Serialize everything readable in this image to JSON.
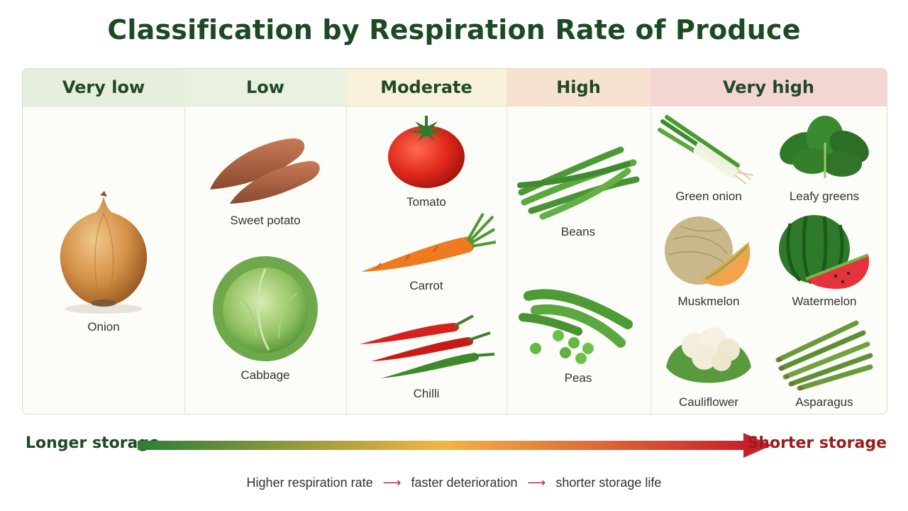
{
  "title": "Classification by Respiration Rate of Produce",
  "columns": [
    {
      "label": "Very low",
      "bg": "#e6efdc"
    },
    {
      "label": "Low",
      "bg": "#eaf1e1"
    },
    {
      "label": "Moderate",
      "bg": "#f7f2d9"
    },
    {
      "label": "High",
      "bg": "#f7e1cf"
    },
    {
      "label": "Very high",
      "bg": "#f3d5d3"
    }
  ],
  "produce": {
    "onion": "Onion",
    "sweet_potato": "Sweet potato",
    "cabbage": "Cabbage",
    "tomato": "Tomato",
    "carrot": "Carrot",
    "chilli": "Chilli",
    "beans": "Beans",
    "peas": "Peas",
    "green_onion": "Green onion",
    "leafy_greens": "Leafy greens",
    "muskmelon": "Muskmelon",
    "watermelon": "Watermelon",
    "cauliflower": "Cauliflower",
    "asparagus": "Asparagus"
  },
  "scale": {
    "left": "Longer storage",
    "right": "Shorter storage",
    "left_color": "#2e7d3a",
    "mid_color": "#f2b544",
    "right_color": "#c8202a"
  },
  "footer": {
    "step1": "Higher respiration rate",
    "step2": "faster deterioration",
    "step3": "shorter storage life",
    "arrow": "⟶"
  }
}
